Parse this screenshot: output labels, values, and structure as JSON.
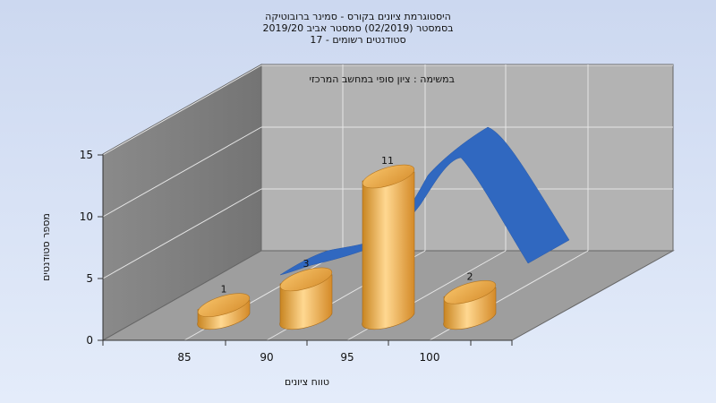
{
  "chart_data": {
    "type": "bar",
    "title_lines": [
      "היסטוגרמת ציונים בקורס - סמינר ברובוטיקה",
      "בסמסטר  (02/2019)  סמסטר אביב 2019/20",
      "סטודנטים רשומים - 17"
    ],
    "subtitle": "במשימה : ציון סופי במחשב המרכזי",
    "xlabel": "טווח ציונים",
    "ylabel": "מספר סטודנטים",
    "categories": [
      "85",
      "90",
      "95",
      "100"
    ],
    "values": [
      1,
      3,
      11,
      2
    ],
    "data_labels": [
      "1",
      "3",
      "11",
      "2"
    ],
    "y_ticks": [
      "0",
      "5",
      "10",
      "15"
    ],
    "ylim": [
      0,
      15
    ],
    "curve": "normal distribution overlay (blue ribbon)",
    "grid": true,
    "colors": {
      "background_top": "#ccd8f0",
      "background_bottom": "#e4ecfa",
      "floor": "#9e9e9e",
      "back_wall": "#b3b3b3",
      "left_wall": "#7e7e7e",
      "bar_light": "#ffd891",
      "bar_mid": "#f0ac48",
      "bar_dark": "#c07818",
      "curve": "#3068c0"
    }
  }
}
